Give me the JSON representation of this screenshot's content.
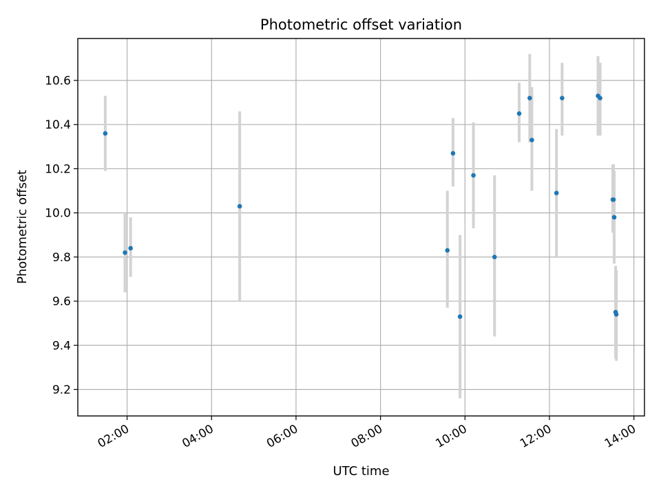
{
  "chart_data": {
    "type": "scatter",
    "title": "Photometric offset variation",
    "xlabel": "UTC time",
    "ylabel": "Photometric offset",
    "grid": true,
    "legend": "none",
    "x_axis": {
      "kind": "time",
      "unit": "hours",
      "range": [
        "01:00",
        "14:15"
      ]
    },
    "xlim": [
      "00:50",
      "14:15"
    ],
    "ylim": [
      9.08,
      10.79
    ],
    "x_tick_labels": [
      "02:00",
      "04:00",
      "06:00",
      "08:00",
      "10:00",
      "12:00",
      "14:00"
    ],
    "y_tick_labels": [
      "9.2",
      "9.4",
      "9.6",
      "9.8",
      "10.0",
      "10.2",
      "10.4",
      "10.6"
    ],
    "colors": {
      "point": "#1f77b4",
      "errorbar": "#d3d3d3",
      "grid": "#b0b0b0"
    },
    "series": [
      {
        "points": [
          {
            "time": "01:29",
            "y": 10.36,
            "ylow": 10.19,
            "yhigh": 10.53
          },
          {
            "time": "01:57",
            "y": 9.82,
            "ylow": 9.64,
            "yhigh": 10.0
          },
          {
            "time": "02:05",
            "y": 9.84,
            "ylow": 9.71,
            "yhigh": 9.98
          },
          {
            "time": "04:40",
            "y": 10.03,
            "ylow": 9.6,
            "yhigh": 10.46
          },
          {
            "time": "09:35",
            "y": 9.83,
            "ylow": 9.57,
            "yhigh": 10.1
          },
          {
            "time": "09:43",
            "y": 10.27,
            "ylow": 10.12,
            "yhigh": 10.43
          },
          {
            "time": "09:53",
            "y": 9.53,
            "ylow": 9.16,
            "yhigh": 9.9
          },
          {
            "time": "10:12",
            "y": 10.17,
            "ylow": 9.93,
            "yhigh": 10.41
          },
          {
            "time": "10:42",
            "y": 9.8,
            "ylow": 9.44,
            "yhigh": 10.17
          },
          {
            "time": "11:17",
            "y": 10.45,
            "ylow": 10.32,
            "yhigh": 10.59
          },
          {
            "time": "11:32",
            "y": 10.52,
            "ylow": 10.32,
            "yhigh": 10.72
          },
          {
            "time": "11:35",
            "y": 10.33,
            "ylow": 10.1,
            "yhigh": 10.57
          },
          {
            "time": "12:10",
            "y": 10.09,
            "ylow": 9.8,
            "yhigh": 10.38
          },
          {
            "time": "12:18",
            "y": 10.52,
            "ylow": 10.35,
            "yhigh": 10.68
          },
          {
            "time": "13:09",
            "y": 10.53,
            "ylow": 10.35,
            "yhigh": 10.71
          },
          {
            "time": "13:12",
            "y": 10.52,
            "ylow": 10.35,
            "yhigh": 10.68
          },
          {
            "time": "13:30",
            "y": 10.06,
            "ylow": 9.91,
            "yhigh": 10.22
          },
          {
            "time": "13:31",
            "y": 10.06,
            "ylow": 9.91,
            "yhigh": 10.22
          },
          {
            "time": "13:32",
            "y": 9.98,
            "ylow": 9.77,
            "yhigh": 10.19
          },
          {
            "time": "13:34",
            "y": 9.55,
            "ylow": 9.34,
            "yhigh": 9.76
          },
          {
            "time": "13:35",
            "y": 9.54,
            "ylow": 9.33,
            "yhigh": 9.74
          }
        ]
      }
    ]
  }
}
